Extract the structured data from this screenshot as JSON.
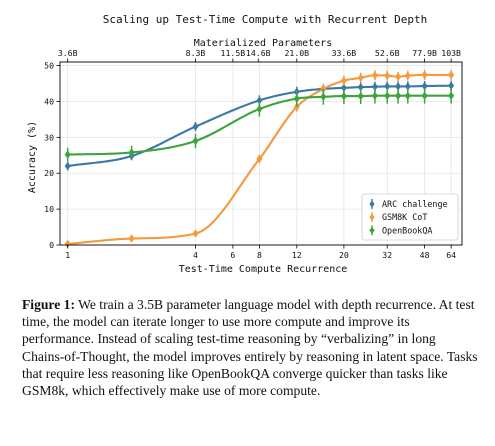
{
  "caption": {
    "label": "Figure 1:",
    "text": " We train a 3.5B parameter language model with depth recurrence. At test time, the model can iterate longer to use more compute and improve its performance. Instead of scaling test-time reasoning by “verbalizing” in long Chains-of-Thought, the model improves entirely by reasoning in latent space. Tasks that require less reasoning like OpenBookQA converge quicker than tasks like GSM8k, which effectively make use of more compute."
  },
  "chart_data": {
    "type": "line",
    "title": "Scaling up Test-Time Compute with Recurrent Depth",
    "xlabel": "Test-Time Compute Recurrence",
    "ylabel": "Accuracy (%)",
    "x_scale": "log",
    "xlim": [
      0.92,
      72
    ],
    "ylim": [
      0,
      51
    ],
    "x_ticks": [
      1,
      4,
      6,
      8,
      12,
      20,
      32,
      48,
      64
    ],
    "y_ticks": [
      0,
      10,
      20,
      30,
      40,
      50
    ],
    "grid": true,
    "top_axis": {
      "label": "Materialized Parameters",
      "ticks": [
        {
          "x": 1,
          "label": "3.6B"
        },
        {
          "x": 4,
          "label": "8.3B"
        },
        {
          "x": 6,
          "label": "11.5B"
        },
        {
          "x": 7.9,
          "label": "14.6B"
        },
        {
          "x": 12,
          "label": "21.0B"
        },
        {
          "x": 20,
          "label": "33.6B"
        },
        {
          "x": 32,
          "label": "52.6B"
        },
        {
          "x": 48,
          "label": "77.9B"
        },
        {
          "x": 64,
          "label": "103B"
        }
      ]
    },
    "legend_position": "lower-right",
    "series": [
      {
        "name": "ARC challenge",
        "color": "#3b78aa",
        "x": [
          1,
          2,
          4,
          8,
          12,
          16,
          20,
          24,
          28,
          32,
          36,
          40,
          48,
          64
        ],
        "y": [
          22,
          24.8,
          33,
          40.3,
          42.7,
          43.5,
          43.8,
          44,
          44.1,
          44.2,
          44.2,
          44.2,
          44.3,
          44.4
        ],
        "err": [
          1.2,
          1.2,
          1.3,
          1.4,
          1.4,
          1.4,
          1.4,
          1.4,
          1.4,
          1.4,
          1.4,
          1.4,
          1.4,
          1.4
        ]
      },
      {
        "name": "GSM8K CoT",
        "color": "#f39a3c",
        "x": [
          1,
          2,
          4,
          8,
          12,
          16,
          20,
          24,
          28,
          32,
          36,
          40,
          48,
          64
        ],
        "y": [
          0.3,
          1.8,
          3.2,
          24,
          38.5,
          43.5,
          45.8,
          46.6,
          47.3,
          47.2,
          46.9,
          47.2,
          47.4,
          47.4
        ],
        "err": [
          0.3,
          0.6,
          0.6,
          1.2,
          1.3,
          1.4,
          1.4,
          1.4,
          1.4,
          1.4,
          1.4,
          1.4,
          1.4,
          1.4
        ]
      },
      {
        "name": "OpenBookQA",
        "color": "#3ea33a",
        "x": [
          1,
          2,
          4,
          8,
          12,
          16,
          20,
          24,
          28,
          32,
          36,
          40,
          48,
          64
        ],
        "y": [
          25.2,
          25.8,
          29,
          37.9,
          40.8,
          41.3,
          41.5,
          41.5,
          41.6,
          41.6,
          41.6,
          41.6,
          41.6,
          41.6
        ],
        "err": [
          1.9,
          1.9,
          2,
          2.1,
          2.2,
          2.2,
          2.2,
          2.2,
          2.2,
          2.2,
          2.2,
          2.2,
          2.2,
          2.2
        ]
      }
    ]
  }
}
